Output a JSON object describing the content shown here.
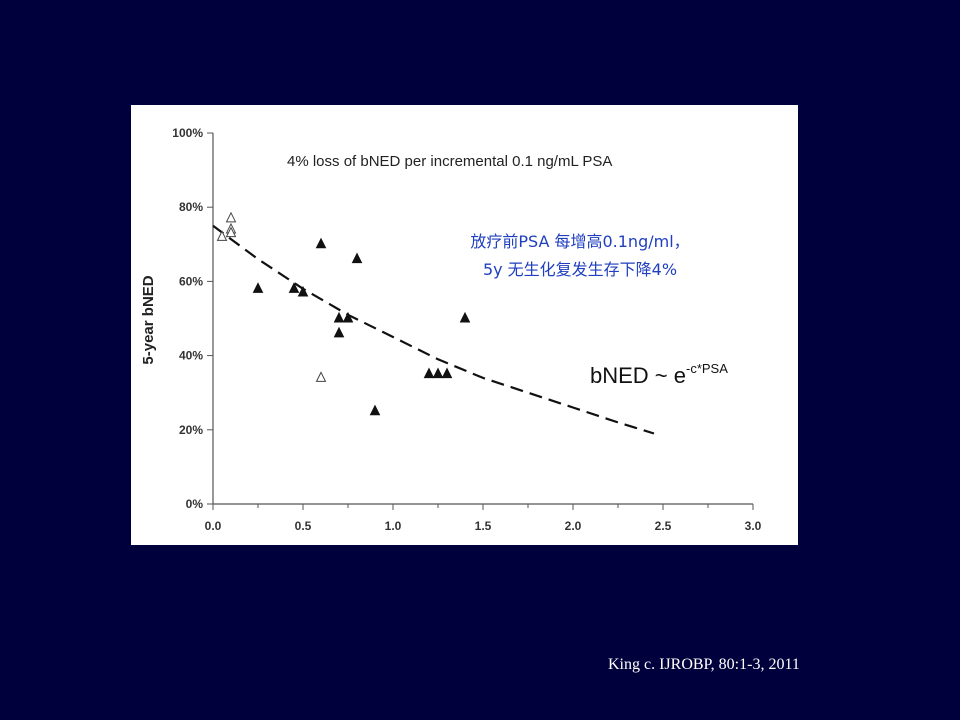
{
  "chart_data": {
    "type": "scatter",
    "title": "4% loss of bNED per incremental 0.1 ng/mL PSA",
    "xlabel": "",
    "ylabel": "5-year bNED",
    "xlim": [
      0,
      3
    ],
    "ylim": [
      0,
      100
    ],
    "x_ticks": [
      "0.0",
      "0.5",
      "1.0",
      "1.5",
      "2.0",
      "2.5",
      "3.0"
    ],
    "y_ticks": [
      "0%",
      "20%",
      "40%",
      "60%",
      "80%",
      "100%"
    ],
    "grid": false,
    "series": [
      {
        "marker": "filled-triangle",
        "x": [
          0.25,
          0.45,
          0.5,
          0.6,
          0.7,
          0.7,
          0.75,
          0.8,
          0.9,
          1.2,
          1.25,
          1.3,
          1.4
        ],
        "y": [
          58,
          58,
          57,
          70,
          50,
          46,
          50,
          66,
          25,
          35,
          35,
          35,
          50
        ]
      },
      {
        "marker": "open-triangle",
        "x": [
          0.05,
          0.1,
          0.1,
          0.1,
          0.6
        ],
        "y": [
          72,
          77,
          74,
          73,
          34
        ]
      }
    ],
    "fit_curve": {
      "style": "dashed",
      "x": [
        0,
        0.25,
        0.5,
        0.75,
        1.0,
        1.25,
        1.5,
        1.75,
        2.0,
        2.25,
        2.45
      ],
      "y": [
        75,
        66,
        58,
        51,
        45,
        39,
        34,
        30,
        26,
        22,
        19
      ]
    },
    "formula": {
      "base": "bNED ~ e",
      "exponent": "-c*PSA"
    },
    "annotation_lines": [
      "放疗前PSA 每增高0.1ng/ml，",
      "5y 无生化复发生存下降4%"
    ],
    "colors": {
      "slide_background": "#00003c",
      "annotation": "#1f3fbf",
      "marker": "#111111"
    }
  },
  "citation": "King c. IJROBP, 80:1-3, 2011"
}
